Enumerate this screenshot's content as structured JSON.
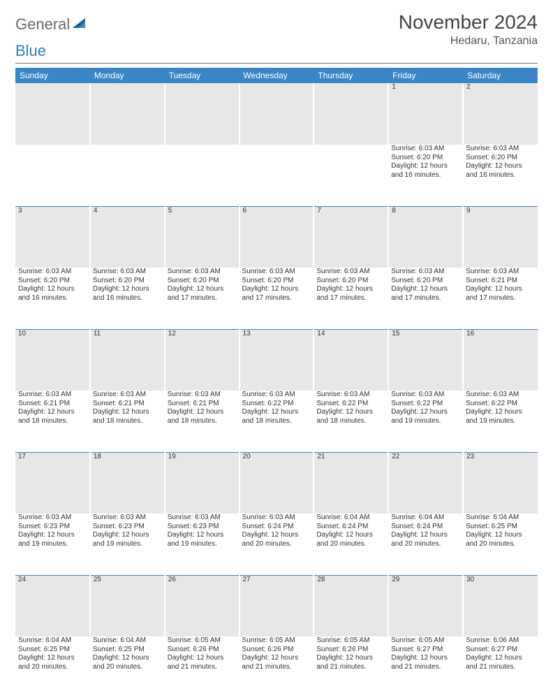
{
  "brand": {
    "word1": "General",
    "word2": "Blue"
  },
  "title": "November 2024",
  "subtitle": "Hedaru, Tanzania",
  "colors": {
    "header_bg": "#3b86c6",
    "header_fg": "#ffffff",
    "daynum_bg": "#e7e7e7",
    "rule": "#7a7a7a",
    "brand_gray": "#6b6b6b",
    "brand_blue": "#2f7fbf"
  },
  "dayNames": [
    "Sunday",
    "Monday",
    "Tuesday",
    "Wednesday",
    "Thursday",
    "Friday",
    "Saturday"
  ],
  "weeks": [
    [
      null,
      null,
      null,
      null,
      null,
      {
        "n": "1",
        "sunrise": "Sunrise: 6:03 AM",
        "sunset": "Sunset: 6:20 PM",
        "daylight": "Daylight: 12 hours and 16 minutes."
      },
      {
        "n": "2",
        "sunrise": "Sunrise: 6:03 AM",
        "sunset": "Sunset: 6:20 PM",
        "daylight": "Daylight: 12 hours and 16 minutes."
      }
    ],
    [
      {
        "n": "3",
        "sunrise": "Sunrise: 6:03 AM",
        "sunset": "Sunset: 6:20 PM",
        "daylight": "Daylight: 12 hours and 16 minutes."
      },
      {
        "n": "4",
        "sunrise": "Sunrise: 6:03 AM",
        "sunset": "Sunset: 6:20 PM",
        "daylight": "Daylight: 12 hours and 16 minutes."
      },
      {
        "n": "5",
        "sunrise": "Sunrise: 6:03 AM",
        "sunset": "Sunset: 6:20 PM",
        "daylight": "Daylight: 12 hours and 17 minutes."
      },
      {
        "n": "6",
        "sunrise": "Sunrise: 6:03 AM",
        "sunset": "Sunset: 6:20 PM",
        "daylight": "Daylight: 12 hours and 17 minutes."
      },
      {
        "n": "7",
        "sunrise": "Sunrise: 6:03 AM",
        "sunset": "Sunset: 6:20 PM",
        "daylight": "Daylight: 12 hours and 17 minutes."
      },
      {
        "n": "8",
        "sunrise": "Sunrise: 6:03 AM",
        "sunset": "Sunset: 6:20 PM",
        "daylight": "Daylight: 12 hours and 17 minutes."
      },
      {
        "n": "9",
        "sunrise": "Sunrise: 6:03 AM",
        "sunset": "Sunset: 6:21 PM",
        "daylight": "Daylight: 12 hours and 17 minutes."
      }
    ],
    [
      {
        "n": "10",
        "sunrise": "Sunrise: 6:03 AM",
        "sunset": "Sunset: 6:21 PM",
        "daylight": "Daylight: 12 hours and 18 minutes."
      },
      {
        "n": "11",
        "sunrise": "Sunrise: 6:03 AM",
        "sunset": "Sunset: 6:21 PM",
        "daylight": "Daylight: 12 hours and 18 minutes."
      },
      {
        "n": "12",
        "sunrise": "Sunrise: 6:03 AM",
        "sunset": "Sunset: 6:21 PM",
        "daylight": "Daylight: 12 hours and 18 minutes."
      },
      {
        "n": "13",
        "sunrise": "Sunrise: 6:03 AM",
        "sunset": "Sunset: 6:22 PM",
        "daylight": "Daylight: 12 hours and 18 minutes."
      },
      {
        "n": "14",
        "sunrise": "Sunrise: 6:03 AM",
        "sunset": "Sunset: 6:22 PM",
        "daylight": "Daylight: 12 hours and 18 minutes."
      },
      {
        "n": "15",
        "sunrise": "Sunrise: 6:03 AM",
        "sunset": "Sunset: 6:22 PM",
        "daylight": "Daylight: 12 hours and 19 minutes."
      },
      {
        "n": "16",
        "sunrise": "Sunrise: 6:03 AM",
        "sunset": "Sunset: 6:22 PM",
        "daylight": "Daylight: 12 hours and 19 minutes."
      }
    ],
    [
      {
        "n": "17",
        "sunrise": "Sunrise: 6:03 AM",
        "sunset": "Sunset: 6:23 PM",
        "daylight": "Daylight: 12 hours and 19 minutes."
      },
      {
        "n": "18",
        "sunrise": "Sunrise: 6:03 AM",
        "sunset": "Sunset: 6:23 PM",
        "daylight": "Daylight: 12 hours and 19 minutes."
      },
      {
        "n": "19",
        "sunrise": "Sunrise: 6:03 AM",
        "sunset": "Sunset: 6:23 PM",
        "daylight": "Daylight: 12 hours and 19 minutes."
      },
      {
        "n": "20",
        "sunrise": "Sunrise: 6:03 AM",
        "sunset": "Sunset: 6:24 PM",
        "daylight": "Daylight: 12 hours and 20 minutes."
      },
      {
        "n": "21",
        "sunrise": "Sunrise: 6:04 AM",
        "sunset": "Sunset: 6:24 PM",
        "daylight": "Daylight: 12 hours and 20 minutes."
      },
      {
        "n": "22",
        "sunrise": "Sunrise: 6:04 AM",
        "sunset": "Sunset: 6:24 PM",
        "daylight": "Daylight: 12 hours and 20 minutes."
      },
      {
        "n": "23",
        "sunrise": "Sunrise: 6:04 AM",
        "sunset": "Sunset: 6:25 PM",
        "daylight": "Daylight: 12 hours and 20 minutes."
      }
    ],
    [
      {
        "n": "24",
        "sunrise": "Sunrise: 6:04 AM",
        "sunset": "Sunset: 6:25 PM",
        "daylight": "Daylight: 12 hours and 20 minutes."
      },
      {
        "n": "25",
        "sunrise": "Sunrise: 6:04 AM",
        "sunset": "Sunset: 6:25 PM",
        "daylight": "Daylight: 12 hours and 20 minutes."
      },
      {
        "n": "26",
        "sunrise": "Sunrise: 6:05 AM",
        "sunset": "Sunset: 6:26 PM",
        "daylight": "Daylight: 12 hours and 21 minutes."
      },
      {
        "n": "27",
        "sunrise": "Sunrise: 6:05 AM",
        "sunset": "Sunset: 6:26 PM",
        "daylight": "Daylight: 12 hours and 21 minutes."
      },
      {
        "n": "28",
        "sunrise": "Sunrise: 6:05 AM",
        "sunset": "Sunset: 6:26 PM",
        "daylight": "Daylight: 12 hours and 21 minutes."
      },
      {
        "n": "29",
        "sunrise": "Sunrise: 6:05 AM",
        "sunset": "Sunset: 6:27 PM",
        "daylight": "Daylight: 12 hours and 21 minutes."
      },
      {
        "n": "30",
        "sunrise": "Sunrise: 6:06 AM",
        "sunset": "Sunset: 6:27 PM",
        "daylight": "Daylight: 12 hours and 21 minutes."
      }
    ]
  ]
}
